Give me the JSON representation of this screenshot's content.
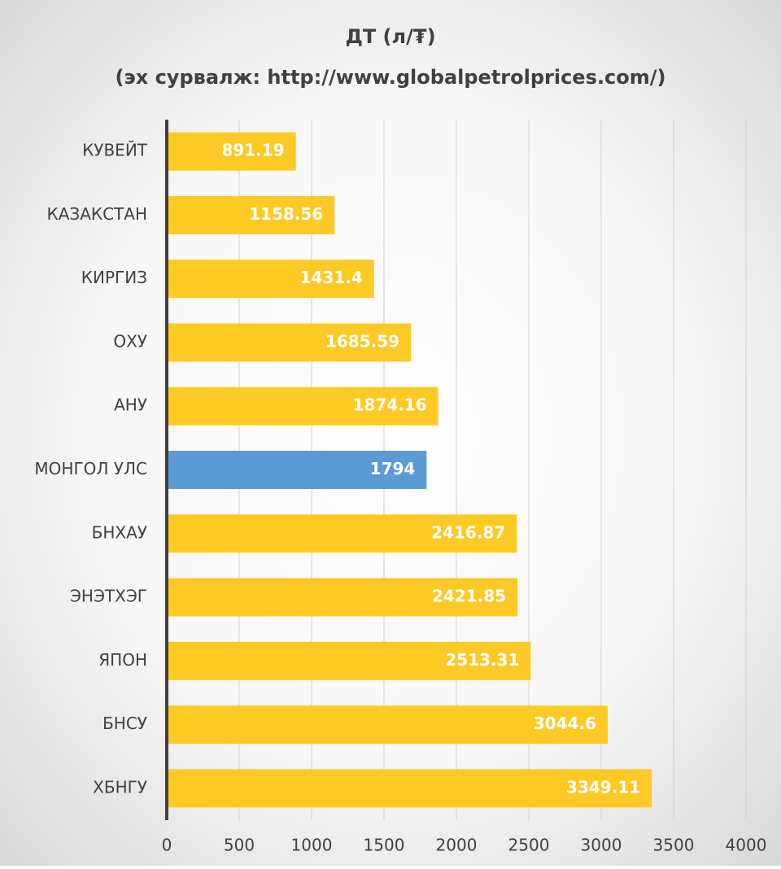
{
  "chart_data": {
    "type": "bar",
    "orientation": "horizontal",
    "title": "ДТ (л/₮)",
    "subtitle": "(эх сурвалж: http://www.globalpetrolprices.com/)",
    "categories": [
      "КУВЕЙТ",
      "КАЗАКСТАН",
      "КИРГИЗ",
      "ОХУ",
      "АНУ",
      "МОНГОЛ УЛС",
      "БНХАУ",
      "ЭНЭТХЭГ",
      "ЯПОН",
      "БНСУ",
      "ХБНГУ"
    ],
    "values": [
      891.19,
      1158.56,
      1431.4,
      1685.59,
      1874.16,
      1794,
      2416.87,
      2421.85,
      2513.31,
      3044.6,
      3349.11
    ],
    "colors": [
      "#ffc926",
      "#ffc926",
      "#ffc926",
      "#ffc926",
      "#ffc926",
      "#5b9bd5",
      "#ffc926",
      "#ffc926",
      "#ffc926",
      "#ffc926",
      "#ffc926"
    ],
    "xlim": [
      0,
      4000
    ],
    "xticks": [
      0,
      500,
      1000,
      1500,
      2000,
      2500,
      3000,
      3500,
      4000
    ],
    "grid": true
  }
}
